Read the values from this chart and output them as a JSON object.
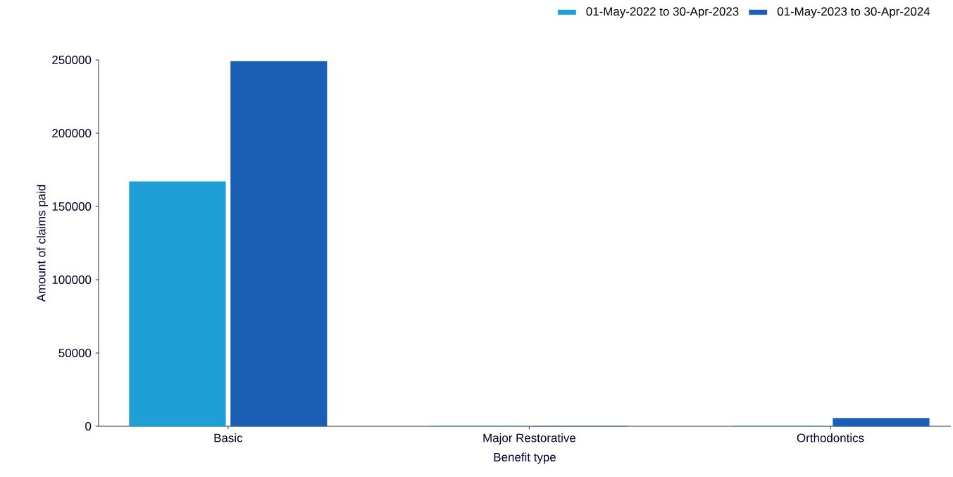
{
  "chart_data": {
    "type": "bar",
    "xlabel": "Benefit type",
    "ylabel": "Amount of claims paid",
    "categories": [
      "Basic",
      "Major Restorative",
      "Orthodontics"
    ],
    "series": [
      {
        "name": "01-May-2022 to 30-Apr-2023",
        "color": "#1e9fd6",
        "values": [
          167000,
          0,
          0
        ]
      },
      {
        "name": "01-May-2023 to 30-Apr-2024",
        "color": "#1a5fb4",
        "values": [
          249000,
          0,
          5500
        ]
      }
    ],
    "ylim": [
      0,
      250000
    ],
    "yticks": [
      0,
      50000,
      100000,
      150000,
      200000,
      250000
    ],
    "legend": "top right"
  }
}
